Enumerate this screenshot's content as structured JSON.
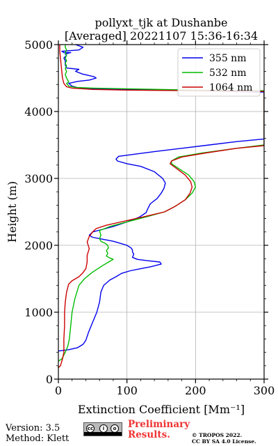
{
  "chart_data": {
    "type": "line",
    "title": "pollyxt_tjk at Dushanbe",
    "subtitle": "[Averaged] 20221107 15:36-16:34",
    "xlabel": "Extinction Coefficient [Mm⁻¹]",
    "ylabel": "Height (m)",
    "xlim": [
      0,
      300
    ],
    "ylim": [
      0,
      5000
    ],
    "xticks": [
      "0",
      "100",
      "200",
      "300"
    ],
    "yticks": [
      "0",
      "1000",
      "2000",
      "3000",
      "4000",
      "5000"
    ],
    "grid": true,
    "legend_position": "top-right",
    "series": [
      {
        "name": "355 nm",
        "color": "#0000ee",
        "points": [
          [
            0,
            420
          ],
          [
            15,
            440
          ],
          [
            28,
            470
          ],
          [
            36,
            520
          ],
          [
            40,
            580
          ],
          [
            44,
            700
          ],
          [
            50,
            850
          ],
          [
            56,
            1000
          ],
          [
            60,
            1150
          ],
          [
            62,
            1300
          ],
          [
            66,
            1400
          ],
          [
            75,
            1480
          ],
          [
            84,
            1530
          ],
          [
            92,
            1580
          ],
          [
            105,
            1620
          ],
          [
            120,
            1650
          ],
          [
            135,
            1680
          ],
          [
            150,
            1720
          ],
          [
            148,
            1750
          ],
          [
            130,
            1770
          ],
          [
            115,
            1790
          ],
          [
            108,
            1820
          ],
          [
            110,
            1870
          ],
          [
            108,
            1900
          ],
          [
            108,
            1930
          ],
          [
            106,
            1960
          ],
          [
            100,
            2000
          ],
          [
            90,
            2030
          ],
          [
            80,
            2060
          ],
          [
            60,
            2100
          ],
          [
            50,
            2120
          ],
          [
            45,
            2150
          ],
          [
            50,
            2200
          ],
          [
            65,
            2240
          ],
          [
            80,
            2280
          ],
          [
            100,
            2350
          ],
          [
            118,
            2420
          ],
          [
            128,
            2490
          ],
          [
            130,
            2540
          ],
          [
            134,
            2620
          ],
          [
            144,
            2700
          ],
          [
            150,
            2780
          ],
          [
            154,
            2850
          ],
          [
            156,
            2930
          ],
          [
            152,
            3000
          ],
          [
            140,
            3100
          ],
          [
            120,
            3180
          ],
          [
            100,
            3220
          ],
          [
            86,
            3260
          ],
          [
            84,
            3290
          ],
          [
            88,
            3330
          ],
          [
            110,
            3360
          ],
          [
            140,
            3400
          ],
          [
            180,
            3450
          ],
          [
            220,
            3500
          ],
          [
            260,
            3550
          ],
          [
            300,
            3590
          ],
          [
            300,
            4290
          ],
          [
            200,
            4310
          ],
          [
            100,
            4330
          ],
          [
            50,
            4340
          ],
          [
            30,
            4350
          ],
          [
            20,
            4380
          ],
          [
            15,
            4420
          ],
          [
            28,
            4450
          ],
          [
            45,
            4470
          ],
          [
            55,
            4500
          ],
          [
            52,
            4520
          ],
          [
            35,
            4560
          ],
          [
            25,
            4600
          ],
          [
            30,
            4630
          ],
          [
            12,
            4650
          ],
          [
            10,
            4700
          ],
          [
            10,
            4760
          ],
          [
            8,
            4800
          ],
          [
            12,
            4840
          ],
          [
            10,
            4860
          ],
          [
            18,
            4880
          ],
          [
            8,
            4880
          ],
          [
            5,
            4900
          ],
          [
            30,
            4920
          ],
          [
            36,
            4960
          ],
          [
            25,
            5000
          ]
        ]
      },
      {
        "name": "532 nm",
        "color": "#00bb00",
        "points": [
          [
            0,
            270
          ],
          [
            5,
            300
          ],
          [
            10,
            400
          ],
          [
            14,
            500
          ],
          [
            16,
            600
          ],
          [
            18,
            800
          ],
          [
            20,
            1000
          ],
          [
            24,
            1200
          ],
          [
            30,
            1400
          ],
          [
            38,
            1500
          ],
          [
            50,
            1600
          ],
          [
            65,
            1700
          ],
          [
            75,
            1760
          ],
          [
            80,
            1790
          ],
          [
            75,
            1810
          ],
          [
            70,
            1840
          ],
          [
            72,
            1880
          ],
          [
            70,
            1920
          ],
          [
            73,
            1960
          ],
          [
            72,
            2000
          ],
          [
            68,
            2030
          ],
          [
            62,
            2060
          ],
          [
            60,
            2100
          ],
          [
            62,
            2150
          ],
          [
            60,
            2220
          ],
          [
            75,
            2280
          ],
          [
            100,
            2350
          ],
          [
            130,
            2430
          ],
          [
            155,
            2500
          ],
          [
            170,
            2580
          ],
          [
            185,
            2680
          ],
          [
            195,
            2780
          ],
          [
            200,
            2870
          ],
          [
            198,
            2950
          ],
          [
            190,
            3050
          ],
          [
            175,
            3150
          ],
          [
            165,
            3220
          ],
          [
            165,
            3260
          ],
          [
            175,
            3320
          ],
          [
            210,
            3380
          ],
          [
            260,
            3450
          ],
          [
            300,
            3500
          ],
          [
            300,
            4310
          ],
          [
            200,
            4320
          ],
          [
            100,
            4340
          ],
          [
            50,
            4350
          ],
          [
            25,
            4360
          ],
          [
            15,
            4380
          ],
          [
            12,
            4420
          ],
          [
            15,
            4440
          ],
          [
            14,
            4460
          ],
          [
            12,
            4500
          ],
          [
            10,
            4550
          ],
          [
            12,
            4600
          ],
          [
            10,
            4640
          ],
          [
            12,
            4680
          ],
          [
            10,
            4720
          ],
          [
            12,
            4760
          ],
          [
            10,
            4800
          ],
          [
            12,
            4840
          ],
          [
            10,
            4880
          ],
          [
            12,
            4920
          ],
          [
            10,
            4960
          ],
          [
            10,
            5000
          ]
        ]
      },
      {
        "name": "1064 nm",
        "color": "#cc0000",
        "points": [
          [
            0,
            170
          ],
          [
            3,
            200
          ],
          [
            6,
            300
          ],
          [
            8,
            400
          ],
          [
            8,
            600
          ],
          [
            9,
            800
          ],
          [
            9,
            1000
          ],
          [
            10,
            1150
          ],
          [
            12,
            1300
          ],
          [
            15,
            1420
          ],
          [
            20,
            1470
          ],
          [
            30,
            1530
          ],
          [
            35,
            1580
          ],
          [
            40,
            1650
          ],
          [
            42,
            1750
          ],
          [
            42,
            1850
          ],
          [
            45,
            1950
          ],
          [
            42,
            2050
          ],
          [
            45,
            2130
          ],
          [
            50,
            2200
          ],
          [
            55,
            2250
          ],
          [
            70,
            2300
          ],
          [
            100,
            2370
          ],
          [
            130,
            2440
          ],
          [
            155,
            2500
          ],
          [
            170,
            2580
          ],
          [
            185,
            2680
          ],
          [
            192,
            2780
          ],
          [
            195,
            2870
          ],
          [
            193,
            2950
          ],
          [
            185,
            3050
          ],
          [
            172,
            3150
          ],
          [
            163,
            3220
          ],
          [
            165,
            3260
          ],
          [
            180,
            3320
          ],
          [
            215,
            3380
          ],
          [
            260,
            3450
          ],
          [
            300,
            3490
          ],
          [
            300,
            4300
          ],
          [
            200,
            4310
          ],
          [
            100,
            4320
          ],
          [
            50,
            4330
          ],
          [
            20,
            4350
          ],
          [
            12,
            4370
          ],
          [
            8,
            4420
          ],
          [
            6,
            4500
          ],
          [
            5,
            4600
          ],
          [
            4,
            4700
          ],
          [
            3,
            4800
          ],
          [
            2,
            4900
          ],
          [
            2,
            5000
          ]
        ]
      }
    ]
  },
  "footer": {
    "version": "Version: 3.5",
    "method": "Method: Klett",
    "preliminary_1": "Preliminary",
    "preliminary_2": "Results.",
    "tropos_1": "© TROPOS 2022.",
    "tropos_2": "CC BY SA 4.0 License.",
    "cc_badge": "BY SA"
  }
}
